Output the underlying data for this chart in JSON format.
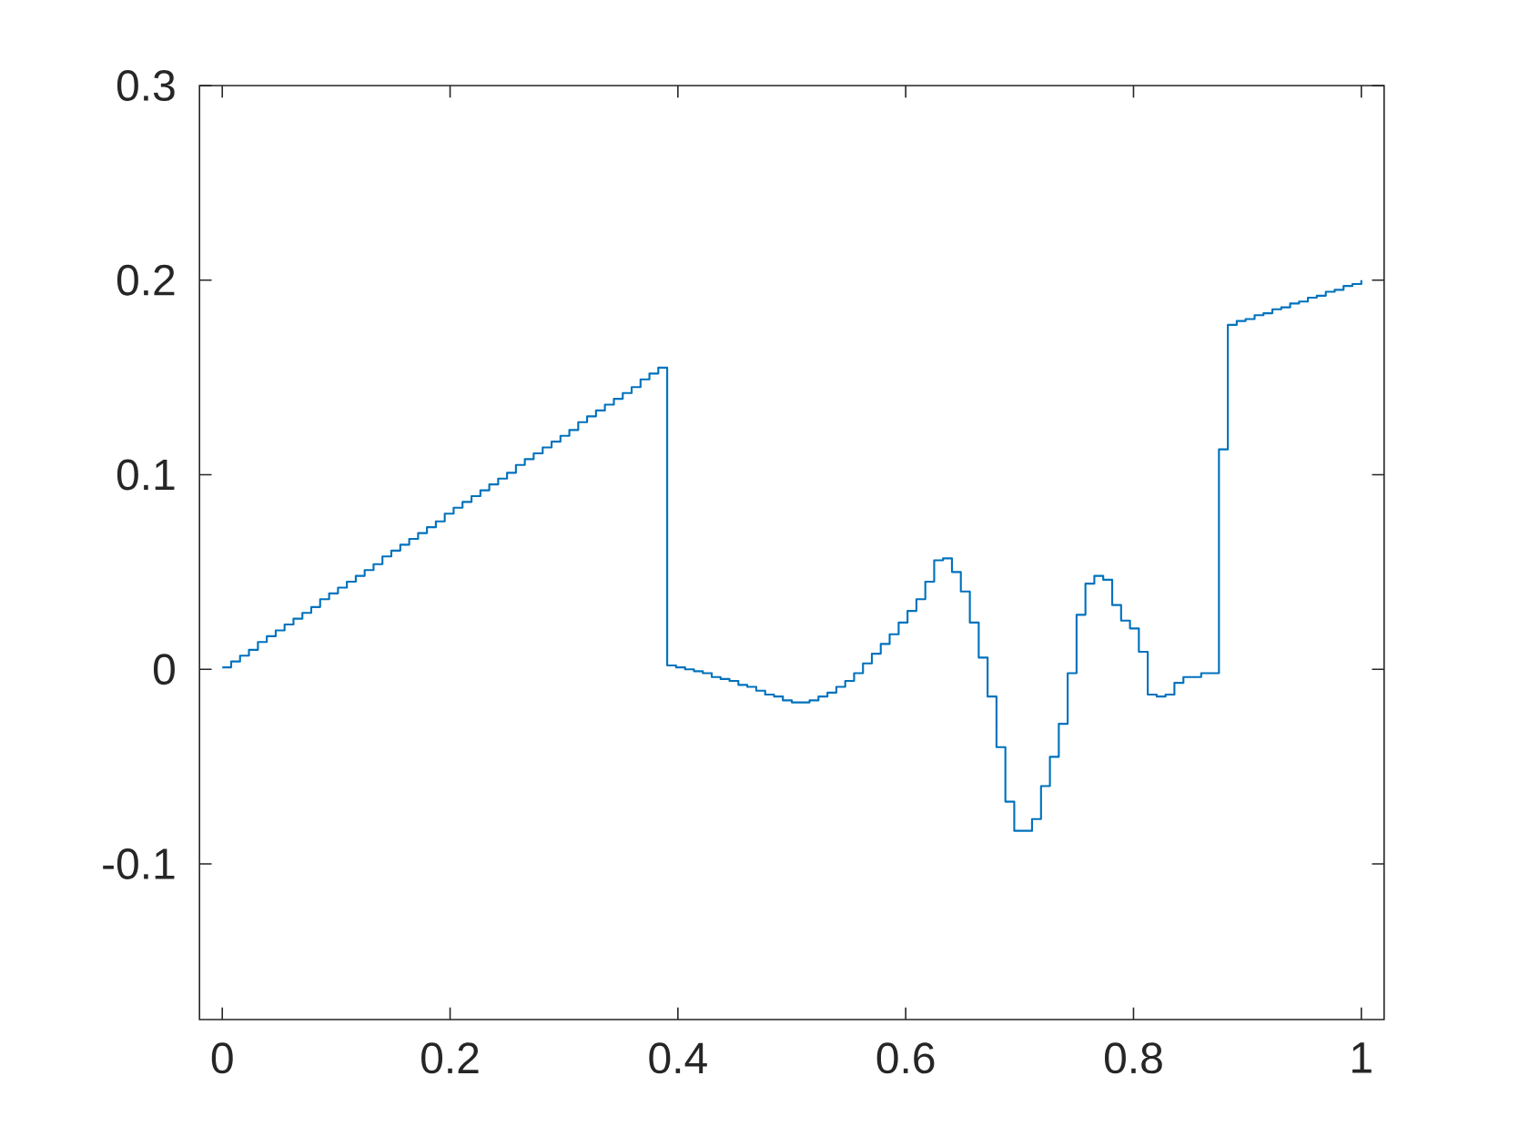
{
  "chart_data": {
    "type": "step",
    "x": [
      0,
      0.0078,
      0.0156,
      0.0234,
      0.0313,
      0.0391,
      0.0469,
      0.0547,
      0.0625,
      0.0703,
      0.0781,
      0.0859,
      0.0938,
      0.1016,
      0.1094,
      0.1172,
      0.125,
      0.1328,
      0.1406,
      0.1484,
      0.1563,
      0.1641,
      0.1719,
      0.1797,
      0.1875,
      0.1953,
      0.2031,
      0.2109,
      0.2188,
      0.2266,
      0.2344,
      0.2422,
      0.25,
      0.2578,
      0.2656,
      0.2734,
      0.2813,
      0.2891,
      0.2969,
      0.3047,
      0.3125,
      0.3203,
      0.3281,
      0.3359,
      0.3438,
      0.3516,
      0.3594,
      0.3672,
      0.375,
      0.3828,
      0.3906,
      0.3984,
      0.4063,
      0.4141,
      0.4219,
      0.4297,
      0.4375,
      0.4453,
      0.4531,
      0.4609,
      0.4688,
      0.4766,
      0.4844,
      0.4922,
      0.5,
      0.5078,
      0.5156,
      0.5234,
      0.5313,
      0.5391,
      0.5469,
      0.5547,
      0.5625,
      0.5703,
      0.5781,
      0.5859,
      0.5938,
      0.6016,
      0.6094,
      0.6172,
      0.625,
      0.6328,
      0.6406,
      0.6484,
      0.6563,
      0.6641,
      0.6719,
      0.6797,
      0.6875,
      0.6953,
      0.7031,
      0.7109,
      0.7188,
      0.7266,
      0.7344,
      0.7422,
      0.75,
      0.7578,
      0.7656,
      0.7734,
      0.7813,
      0.7891,
      0.7969,
      0.8047,
      0.8125,
      0.8203,
      0.8281,
      0.8359,
      0.8438,
      0.8516,
      0.8594,
      0.8672,
      0.875,
      0.8828,
      0.8906,
      0.8984,
      0.9063,
      0.9141,
      0.9219,
      0.9297,
      0.9375,
      0.9453,
      0.9531,
      0.9609,
      0.9688,
      0.9766,
      0.9844,
      0.9922,
      1
    ],
    "series": [
      {
        "color": "#0072bd",
        "values": [
          0.001,
          0.004,
          0.007,
          0.01,
          0.014,
          0.017,
          0.02,
          0.023,
          0.026,
          0.029,
          0.032,
          0.036,
          0.039,
          0.042,
          0.045,
          0.048,
          0.051,
          0.054,
          0.058,
          0.061,
          0.064,
          0.067,
          0.07,
          0.073,
          0.076,
          0.08,
          0.083,
          0.086,
          0.089,
          0.092,
          0.095,
          0.098,
          0.101,
          0.105,
          0.108,
          0.111,
          0.114,
          0.117,
          0.12,
          0.123,
          0.127,
          0.13,
          0.133,
          0.136,
          0.139,
          0.142,
          0.145,
          0.149,
          0.152,
          0.155,
          0.002,
          0.001,
          0.0,
          -0.001,
          -0.002,
          -0.004,
          -0.005,
          -0.006,
          -0.008,
          -0.009,
          -0.011,
          -0.013,
          -0.014,
          -0.016,
          -0.017,
          -0.017,
          -0.016,
          -0.014,
          -0.012,
          -0.009,
          -0.006,
          -0.002,
          0.003,
          0.008,
          0.013,
          0.018,
          0.024,
          0.03,
          0.036,
          0.045,
          0.056,
          0.057,
          0.05,
          0.04,
          0.024,
          0.006,
          -0.014,
          -0.04,
          -0.068,
          -0.083,
          -0.083,
          -0.077,
          -0.06,
          -0.045,
          -0.028,
          -0.002,
          0.028,
          0.044,
          0.048,
          0.046,
          0.033,
          0.025,
          0.021,
          0.009,
          -0.013,
          -0.014,
          -0.013,
          -0.007,
          -0.004,
          -0.004,
          -0.002,
          -0.002,
          0.113,
          0.177,
          0.179,
          0.18,
          0.182,
          0.183,
          0.185,
          0.186,
          0.188,
          0.189,
          0.191,
          0.192,
          0.194,
          0.195,
          0.197,
          0.198,
          0.2
        ]
      }
    ],
    "xlim": [
      -0.02,
      1.02
    ],
    "ylim": [
      -0.18,
      0.3
    ],
    "xticks": [
      0,
      0.2,
      0.4,
      0.6,
      0.8,
      1
    ],
    "yticks": [
      -0.1,
      0,
      0.1,
      0.2,
      0.3
    ],
    "grid": false
  }
}
